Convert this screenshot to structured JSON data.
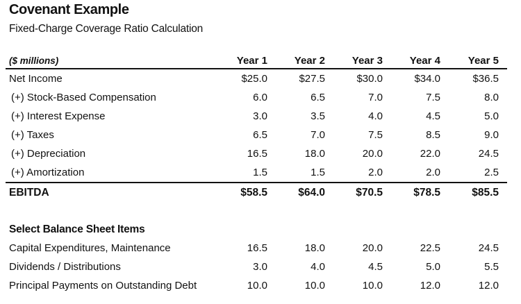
{
  "header": {
    "title": "Covenant Example",
    "subtitle": "Fixed-Charge Coverage Ratio Calculation"
  },
  "table": {
    "unit_label": "($ millions)",
    "columns": [
      "Year 1",
      "Year 2",
      "Year 3",
      "Year 4",
      "Year 5"
    ],
    "rows": [
      {
        "label": "Net Income",
        "values": [
          "$25.0",
          "$27.5",
          "$30.0",
          "$34.0",
          "$36.5"
        ]
      },
      {
        "label": "(+) Stock-Based Compensation",
        "values": [
          "6.0",
          "6.5",
          "7.0",
          "7.5",
          "8.0"
        ]
      },
      {
        "label": "(+) Interest Expense",
        "values": [
          "3.0",
          "3.5",
          "4.0",
          "4.5",
          "5.0"
        ]
      },
      {
        "label": "(+) Taxes",
        "values": [
          "6.5",
          "7.0",
          "7.5",
          "8.5",
          "9.0"
        ]
      },
      {
        "label": "(+) Depreciation",
        "values": [
          "16.5",
          "18.0",
          "20.0",
          "22.0",
          "24.5"
        ]
      },
      {
        "label": "(+) Amortization",
        "values": [
          "1.5",
          "1.5",
          "2.0",
          "2.0",
          "2.5"
        ]
      }
    ],
    "total": {
      "label": "EBITDA",
      "values": [
        "$58.5",
        "$64.0",
        "$70.5",
        "$78.5",
        "$85.5"
      ]
    }
  },
  "balance_sheet": {
    "title": "Select Balance Sheet Items",
    "rows": [
      {
        "label": "Capital Expenditures, Maintenance",
        "values": [
          "16.5",
          "18.0",
          "20.0",
          "22.5",
          "24.5"
        ]
      },
      {
        "label": "Dividends / Distributions",
        "values": [
          "3.0",
          "4.0",
          "4.5",
          "5.0",
          "5.5"
        ]
      },
      {
        "label": "Principal Payments on Outstanding Debt",
        "values": [
          "10.0",
          "10.0",
          "10.0",
          "12.0",
          "12.0"
        ]
      }
    ]
  }
}
